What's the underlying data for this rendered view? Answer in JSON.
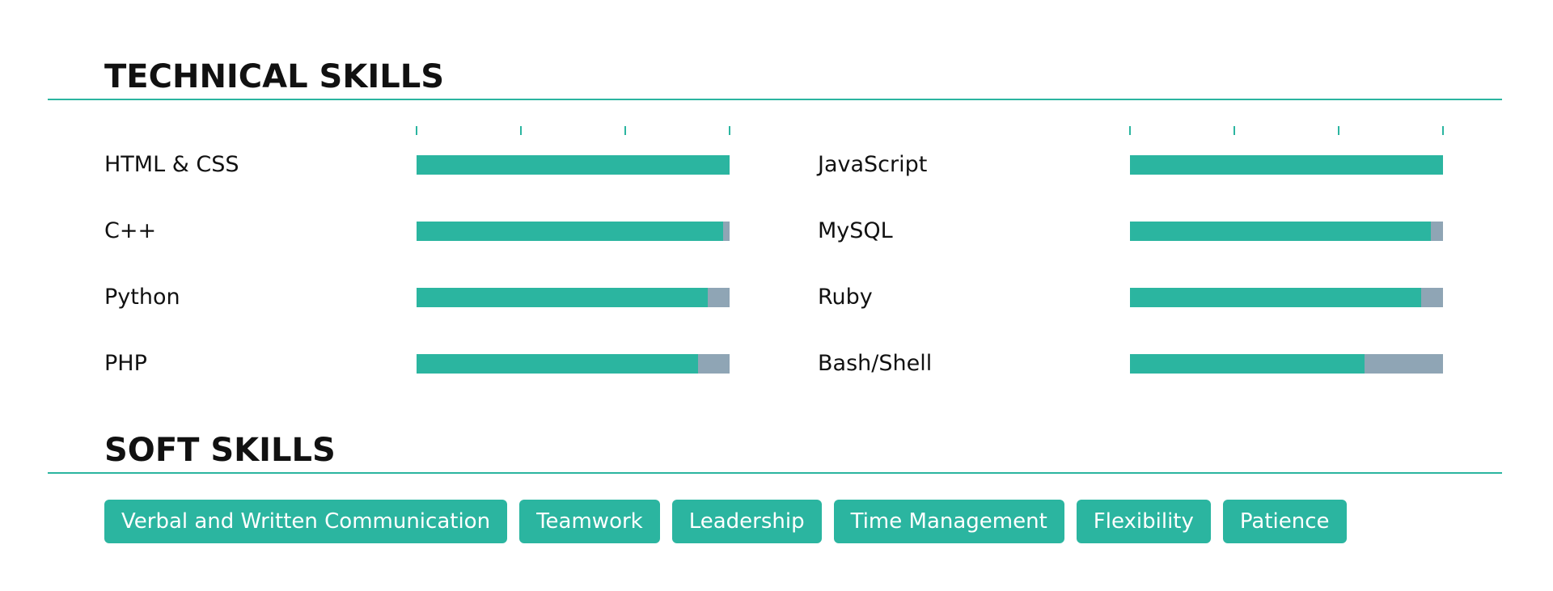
{
  "technical_skills": {
    "title": "TECHNICAL SKILLS",
    "xlim": [
      0,
      100
    ],
    "xticks": [
      0,
      33.3,
      66.7,
      100
    ],
    "skills": [
      {
        "name": "HTML & CSS",
        "value": 100
      },
      {
        "name": "JavaScript",
        "value": 100
      },
      {
        "name": "C++",
        "value": 98
      },
      {
        "name": "MySQL",
        "value": 96
      },
      {
        "name": "Python",
        "value": 93
      },
      {
        "name": "Ruby",
        "value": 93
      },
      {
        "name": "PHP",
        "value": 90
      },
      {
        "name": "Bash/Shell",
        "value": 75
      }
    ],
    "bar_color": "#2bb5a0",
    "track_color": "#8fa5b5"
  },
  "soft_skills": {
    "title": "SOFT SKILLS",
    "tags": [
      "Verbal and Written Communication",
      "Teamwork",
      "Leadership",
      "Time Management",
      "Flexibility",
      "Patience"
    ]
  }
}
